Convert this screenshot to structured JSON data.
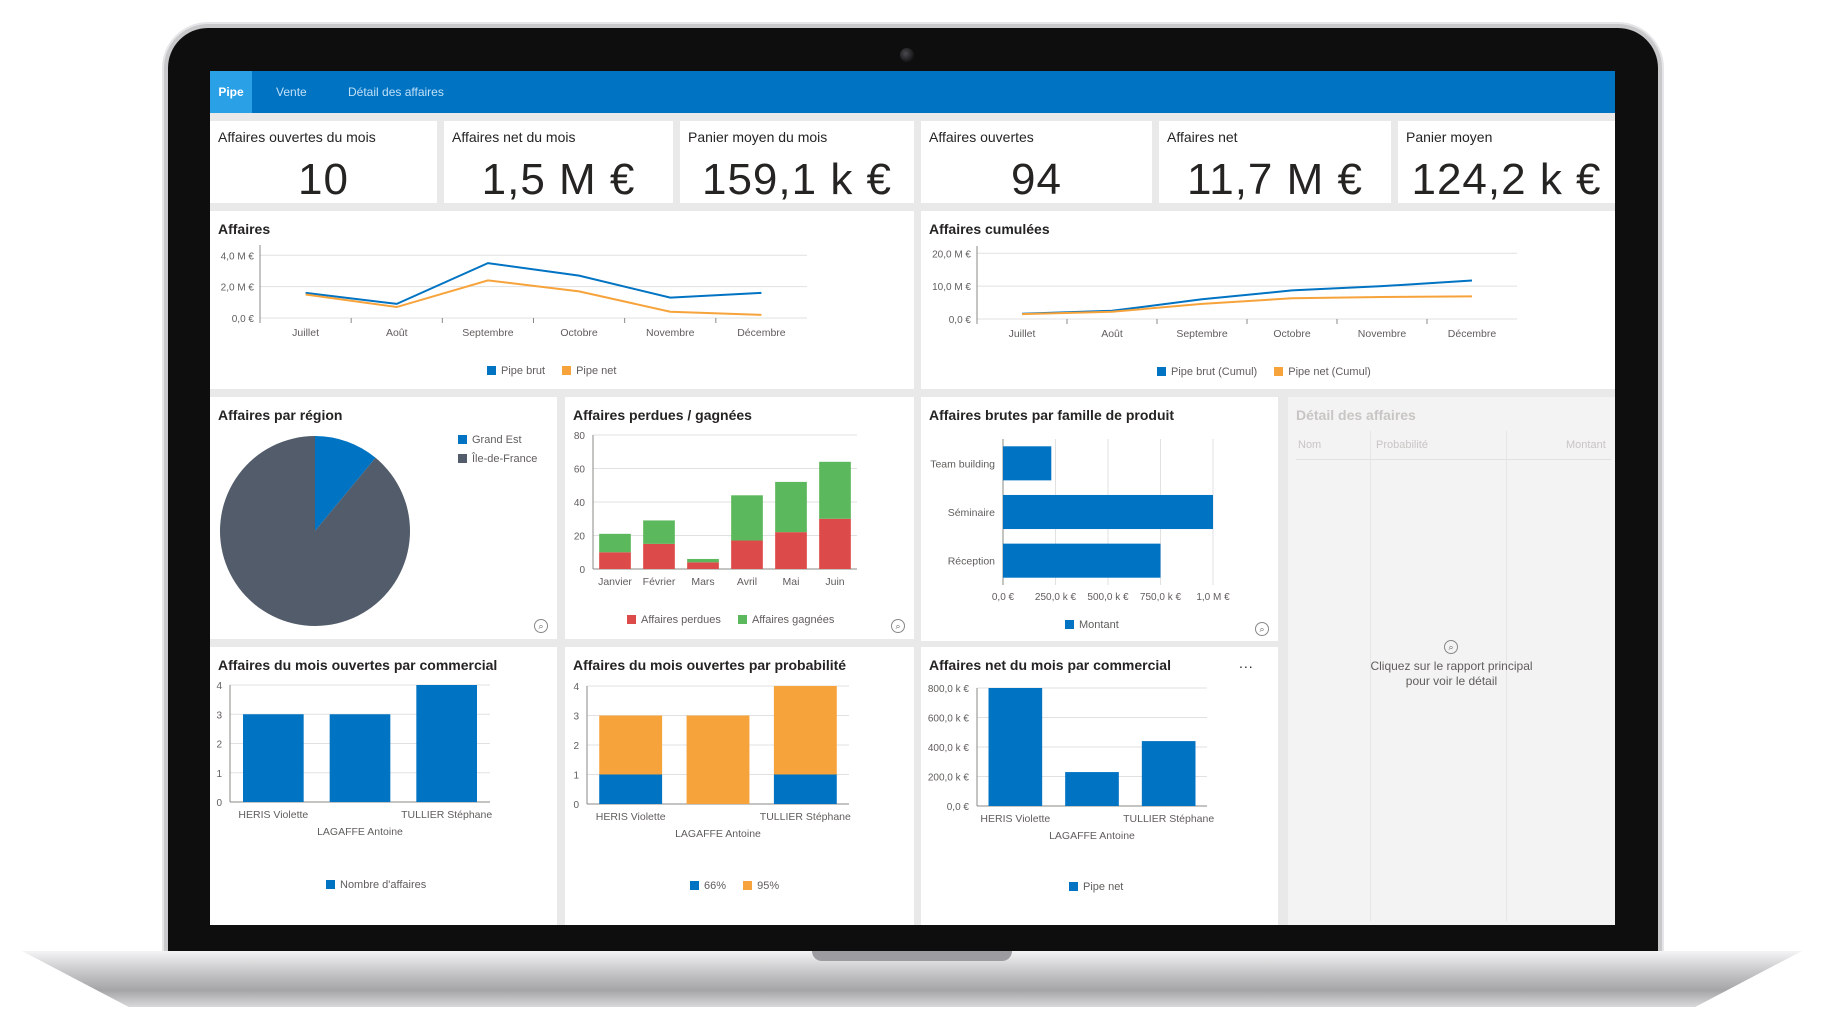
{
  "nav": {
    "tabs": [
      "Pipe",
      "Vente",
      "Détail des affaires"
    ],
    "active_tab": "Pipe"
  },
  "kpis": [
    {
      "title": "Affaires ouvertes du mois",
      "value": "10"
    },
    {
      "title": "Affaires net du mois",
      "value": "1,5 M €"
    },
    {
      "title": "Panier moyen du mois",
      "value": "159,1 k €"
    },
    {
      "title": "Affaires ouvertes",
      "value": "94"
    },
    {
      "title": "Affaires net",
      "value": "11,7 M €"
    },
    {
      "title": "Panier moyen",
      "value": "124,2 k €"
    }
  ],
  "colors": {
    "blue": "#0073c3",
    "orange": "#f7a33b",
    "gray": "#525c6a",
    "red": "#dc4a4a",
    "green": "#5cb85c",
    "nav": "#0073c3"
  },
  "chart_data": [
    {
      "id": "affaires",
      "type": "line",
      "title": "Affaires",
      "categories": [
        "Juillet",
        "Août",
        "Septembre",
        "Octobre",
        "Novembre",
        "Décembre"
      ],
      "yticks": [
        "0,0 €",
        "2,0 M €",
        "4,0 M €"
      ],
      "ylim": [
        0,
        4.4
      ],
      "series": [
        {
          "name": "Pipe brut",
          "values": [
            1.6,
            0.9,
            3.5,
            2.7,
            1.3,
            1.6
          ]
        },
        {
          "name": "Pipe net",
          "values": [
            1.5,
            0.7,
            2.4,
            1.7,
            0.4,
            0.2
          ]
        }
      ]
    },
    {
      "id": "affaires_cumulees",
      "type": "line",
      "title": "Affaires cumulées",
      "categories": [
        "Juillet",
        "Août",
        "Septembre",
        "Octobre",
        "Novembre",
        "Décembre"
      ],
      "yticks": [
        "0,0 €",
        "10,0 M €",
        "20,0 M €"
      ],
      "ylim": [
        0,
        21
      ],
      "series": [
        {
          "name": "Pipe brut (Cumul)",
          "values": [
            1.6,
            2.5,
            6.0,
            8.7,
            10.0,
            11.7
          ]
        },
        {
          "name": "Pipe net (Cumul)",
          "values": [
            1.5,
            2.2,
            4.6,
            6.3,
            6.7,
            6.9
          ]
        }
      ]
    },
    {
      "id": "par_region",
      "type": "pie",
      "title": "Affaires par région",
      "slices": [
        {
          "name": "Grand Est",
          "value": 11
        },
        {
          "name": "Île-de-France",
          "value": 89
        }
      ]
    },
    {
      "id": "perdues_gagnees",
      "type": "bar",
      "stacked": true,
      "title": "Affaires perdues / gagnées",
      "categories": [
        "Janvier",
        "Février",
        "Mars",
        "Avril",
        "Mai",
        "Juin"
      ],
      "yticks": [
        "0",
        "20",
        "40",
        "60",
        "80"
      ],
      "ylim": [
        0,
        80
      ],
      "series": [
        {
          "name": "Affaires perdues",
          "values": [
            10,
            15,
            4,
            17,
            22,
            30
          ]
        },
        {
          "name": "Affaires gagnées",
          "values": [
            11,
            14,
            2,
            27,
            30,
            34
          ]
        }
      ]
    },
    {
      "id": "famille_produit",
      "type": "bar",
      "orientation": "horizontal",
      "title": "Affaires brutes par famille de produit",
      "categories": [
        "Team building",
        "Séminaire",
        "Réception"
      ],
      "xticks": [
        "0,0 €",
        "250,0 k €",
        "500,0 k €",
        "750,0 k €",
        "1,0 M €"
      ],
      "xlim": [
        0,
        1.0
      ],
      "series": [
        {
          "name": "Montant",
          "values": [
            0.23,
            1.0,
            0.75
          ]
        }
      ]
    },
    {
      "id": "ouvertes_commercial",
      "type": "bar",
      "title": "Affaires du mois ouvertes par commercial",
      "categories": [
        "HERIS Violette",
        "LAGAFFE Antoine",
        "TULLIER Stéphane"
      ],
      "yticks": [
        "0",
        "1",
        "2",
        "3",
        "4"
      ],
      "ylim": [
        0,
        4
      ],
      "series": [
        {
          "name": "Nombre d'affaires",
          "values": [
            3,
            3,
            4
          ]
        }
      ]
    },
    {
      "id": "ouvertes_probabilite",
      "type": "bar",
      "stacked": true,
      "title": "Affaires du mois ouvertes par probabilité",
      "categories": [
        "HERIS Violette",
        "LAGAFFE Antoine",
        "TULLIER Stéphane"
      ],
      "yticks": [
        "0",
        "1",
        "2",
        "3",
        "4"
      ],
      "ylim": [
        0,
        4
      ],
      "series": [
        {
          "name": "66%",
          "values": [
            1,
            0,
            1
          ]
        },
        {
          "name": "95%",
          "values": [
            2,
            3,
            3
          ]
        }
      ]
    },
    {
      "id": "net_commercial",
      "type": "bar",
      "title": "Affaires net du mois par commercial",
      "categories": [
        "HERIS Violette",
        "LAGAFFE Antoine",
        "TULLIER Stéphane"
      ],
      "yticks": [
        "0,0 €",
        "200,0 k €",
        "400,0 k €",
        "600,0 k €",
        "800,0 k €"
      ],
      "ylim": [
        0,
        800
      ],
      "series": [
        {
          "name": "Pipe net",
          "values": [
            800,
            230,
            440
          ]
        }
      ]
    }
  ],
  "detail": {
    "title": "Détail des affaires",
    "columns": [
      "Nom",
      "Probabilité",
      "Montant"
    ],
    "message_line1": "Cliquez sur le rapport principal",
    "message_line2": "pour voir le détail"
  },
  "more_label": "..."
}
